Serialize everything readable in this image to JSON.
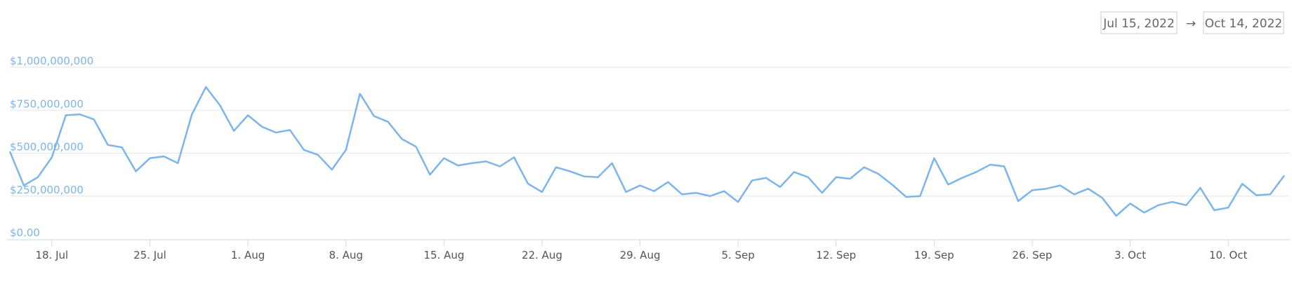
{
  "chart_data": {
    "type": "line",
    "range_selector": {
      "start": "Jul 15, 2022",
      "separator": "→",
      "end": "Oct 14, 2022"
    },
    "x": [
      "2022-07-15",
      "2022-07-16",
      "2022-07-17",
      "2022-07-18",
      "2022-07-19",
      "2022-07-20",
      "2022-07-21",
      "2022-07-22",
      "2022-07-23",
      "2022-07-24",
      "2022-07-25",
      "2022-07-26",
      "2022-07-27",
      "2022-07-28",
      "2022-07-29",
      "2022-07-30",
      "2022-07-31",
      "2022-08-01",
      "2022-08-02",
      "2022-08-03",
      "2022-08-04",
      "2022-08-05",
      "2022-08-06",
      "2022-08-07",
      "2022-08-08",
      "2022-08-09",
      "2022-08-10",
      "2022-08-11",
      "2022-08-12",
      "2022-08-13",
      "2022-08-14",
      "2022-08-15",
      "2022-08-16",
      "2022-08-17",
      "2022-08-18",
      "2022-08-19",
      "2022-08-20",
      "2022-08-21",
      "2022-08-22",
      "2022-08-23",
      "2022-08-24",
      "2022-08-25",
      "2022-08-26",
      "2022-08-27",
      "2022-08-28",
      "2022-08-29",
      "2022-08-30",
      "2022-08-31",
      "2022-09-01",
      "2022-09-02",
      "2022-09-03",
      "2022-09-04",
      "2022-09-05",
      "2022-09-06",
      "2022-09-07",
      "2022-09-08",
      "2022-09-09",
      "2022-09-10",
      "2022-09-11",
      "2022-09-12",
      "2022-09-13",
      "2022-09-14",
      "2022-09-15",
      "2022-09-16",
      "2022-09-17",
      "2022-09-18",
      "2022-09-19",
      "2022-09-20",
      "2022-09-21",
      "2022-09-22",
      "2022-09-23",
      "2022-09-24",
      "2022-09-25",
      "2022-09-26",
      "2022-09-27",
      "2022-09-28",
      "2022-09-29",
      "2022-09-30",
      "2022-10-01",
      "2022-10-02",
      "2022-10-03",
      "2022-10-04",
      "2022-10-05",
      "2022-10-06",
      "2022-10-07",
      "2022-10-08",
      "2022-10-09",
      "2022-10-10",
      "2022-10-11",
      "2022-10-12",
      "2022-10-13",
      "2022-10-14"
    ],
    "series": [
      {
        "color": "#7cb5ec",
        "values": [
          510000000,
          312000000,
          360000000,
          476000000,
          721000000,
          726000000,
          697000000,
          548000000,
          534000000,
          394000000,
          471000000,
          481000000,
          442000000,
          726000000,
          885000000,
          779000000,
          630000000,
          721000000,
          654000000,
          620000000,
          635000000,
          519000000,
          490000000,
          404000000,
          519000000,
          846000000,
          716000000,
          683000000,
          582000000,
          538000000,
          375000000,
          471000000,
          428000000,
          442000000,
          452000000,
          423000000,
          476000000,
          322000000,
          274000000,
          418000000,
          394000000,
          365000000,
          360000000,
          442000000,
          274000000,
          312000000,
          279000000,
          332000000,
          260000000,
          269000000,
          250000000,
          279000000,
          216000000,
          341000000,
          356000000,
          303000000,
          390000000,
          360000000,
          269000000,
          360000000,
          351000000,
          418000000,
          380000000,
          317000000,
          245000000,
          250000000,
          471000000,
          317000000,
          356000000,
          390000000,
          433000000,
          423000000,
          221000000,
          284000000,
          293000000,
          312000000,
          260000000,
          293000000,
          240000000,
          135000000,
          207000000,
          154000000,
          197000000,
          216000000,
          197000000,
          298000000,
          168000000,
          183000000,
          322000000,
          255000000,
          260000000,
          370000000
        ]
      }
    ],
    "xlim": [
      "2022-07-15",
      "2022-10-14"
    ],
    "xticks": [
      {
        "value": "2022-07-18",
        "label": "18. Jul"
      },
      {
        "value": "2022-07-25",
        "label": "25. Jul"
      },
      {
        "value": "2022-08-01",
        "label": "1. Aug"
      },
      {
        "value": "2022-08-08",
        "label": "8. Aug"
      },
      {
        "value": "2022-08-15",
        "label": "15. Aug"
      },
      {
        "value": "2022-08-22",
        "label": "22. Aug"
      },
      {
        "value": "2022-08-29",
        "label": "29. Aug"
      },
      {
        "value": "2022-09-05",
        "label": "5. Sep"
      },
      {
        "value": "2022-09-12",
        "label": "12. Sep"
      },
      {
        "value": "2022-09-19",
        "label": "19. Sep"
      },
      {
        "value": "2022-09-26",
        "label": "26. Sep"
      },
      {
        "value": "2022-10-03",
        "label": "3. Oct"
      },
      {
        "value": "2022-10-10",
        "label": "10. Oct"
      }
    ],
    "ylim": [
      0,
      1000000000
    ],
    "yticks": [
      {
        "value": 0,
        "label": "$0.00"
      },
      {
        "value": 250000000,
        "label": "$250,000,000"
      },
      {
        "value": 500000000,
        "label": "$500,000,000"
      },
      {
        "value": 750000000,
        "label": "$750,000,000"
      },
      {
        "value": 1000000000,
        "label": "$1,000,000,000"
      }
    ],
    "grid": true
  }
}
